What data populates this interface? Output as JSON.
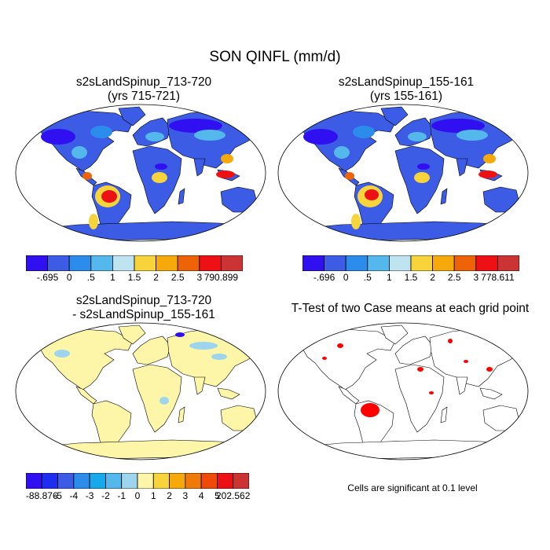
{
  "title": "SON QINFL (mm/d)",
  "panels": [
    {
      "title_line1": "s2sLandSpinup_713-720",
      "title_line2": "(yrs 715-721)"
    },
    {
      "title_line1": "s2sLandSpinup_155-161",
      "title_line2": "(yrs 155-161)"
    },
    {
      "title_line1": "s2sLandSpinup_713-720",
      "title_line2": "- s2sLandSpinup_155-161"
    },
    {
      "title_line1": "T-Test of two Case means at each grid point",
      "title_line2": ""
    }
  ],
  "colorbars": {
    "panel1": {
      "labels": [
        "-.695",
        "0",
        ".5",
        "1",
        "1.5",
        "2",
        "2.5",
        "3",
        "790.899"
      ],
      "colors": [
        "#3010f0",
        "#3c5ce6",
        "#2b8cec",
        "#55b8ec",
        "#bde4f0",
        "#f7d33c",
        "#f6a90a",
        "#ef6308",
        "#ed1015",
        "#cc3333"
      ]
    },
    "panel2": {
      "labels": [
        "-.696",
        "0",
        ".5",
        "1",
        "1.5",
        "2",
        "2.5",
        "3",
        "778.611"
      ],
      "colors": [
        "#3010f0",
        "#3c5ce6",
        "#2b8cec",
        "#55b8ec",
        "#bde4f0",
        "#f7d33c",
        "#f6a90a",
        "#ef6308",
        "#ed1015",
        "#cc3333"
      ]
    },
    "panel3": {
      "labels": [
        "-88.876",
        "-5",
        "-4",
        "-3",
        "-2",
        "-1",
        "0",
        "1",
        "2",
        "3",
        "4",
        "5",
        "202.562"
      ],
      "colors": [
        "#3010f0",
        "#1d2ef0",
        "#3c5ce6",
        "#2b8cec",
        "#18a8ec",
        "#55b8ec",
        "#9dd4ee",
        "#fdf5a8",
        "#f7d33c",
        "#f6a90a",
        "#ef7a08",
        "#ef4a08",
        "#ed1015",
        "#cc3333"
      ]
    }
  },
  "significance_note": "Cells are significant at 0.1 level",
  "colors": {
    "ocean": "#ffffff",
    "coast": "#000000",
    "significant": "#ff0000",
    "diff_background": "#fdf5a8"
  }
}
